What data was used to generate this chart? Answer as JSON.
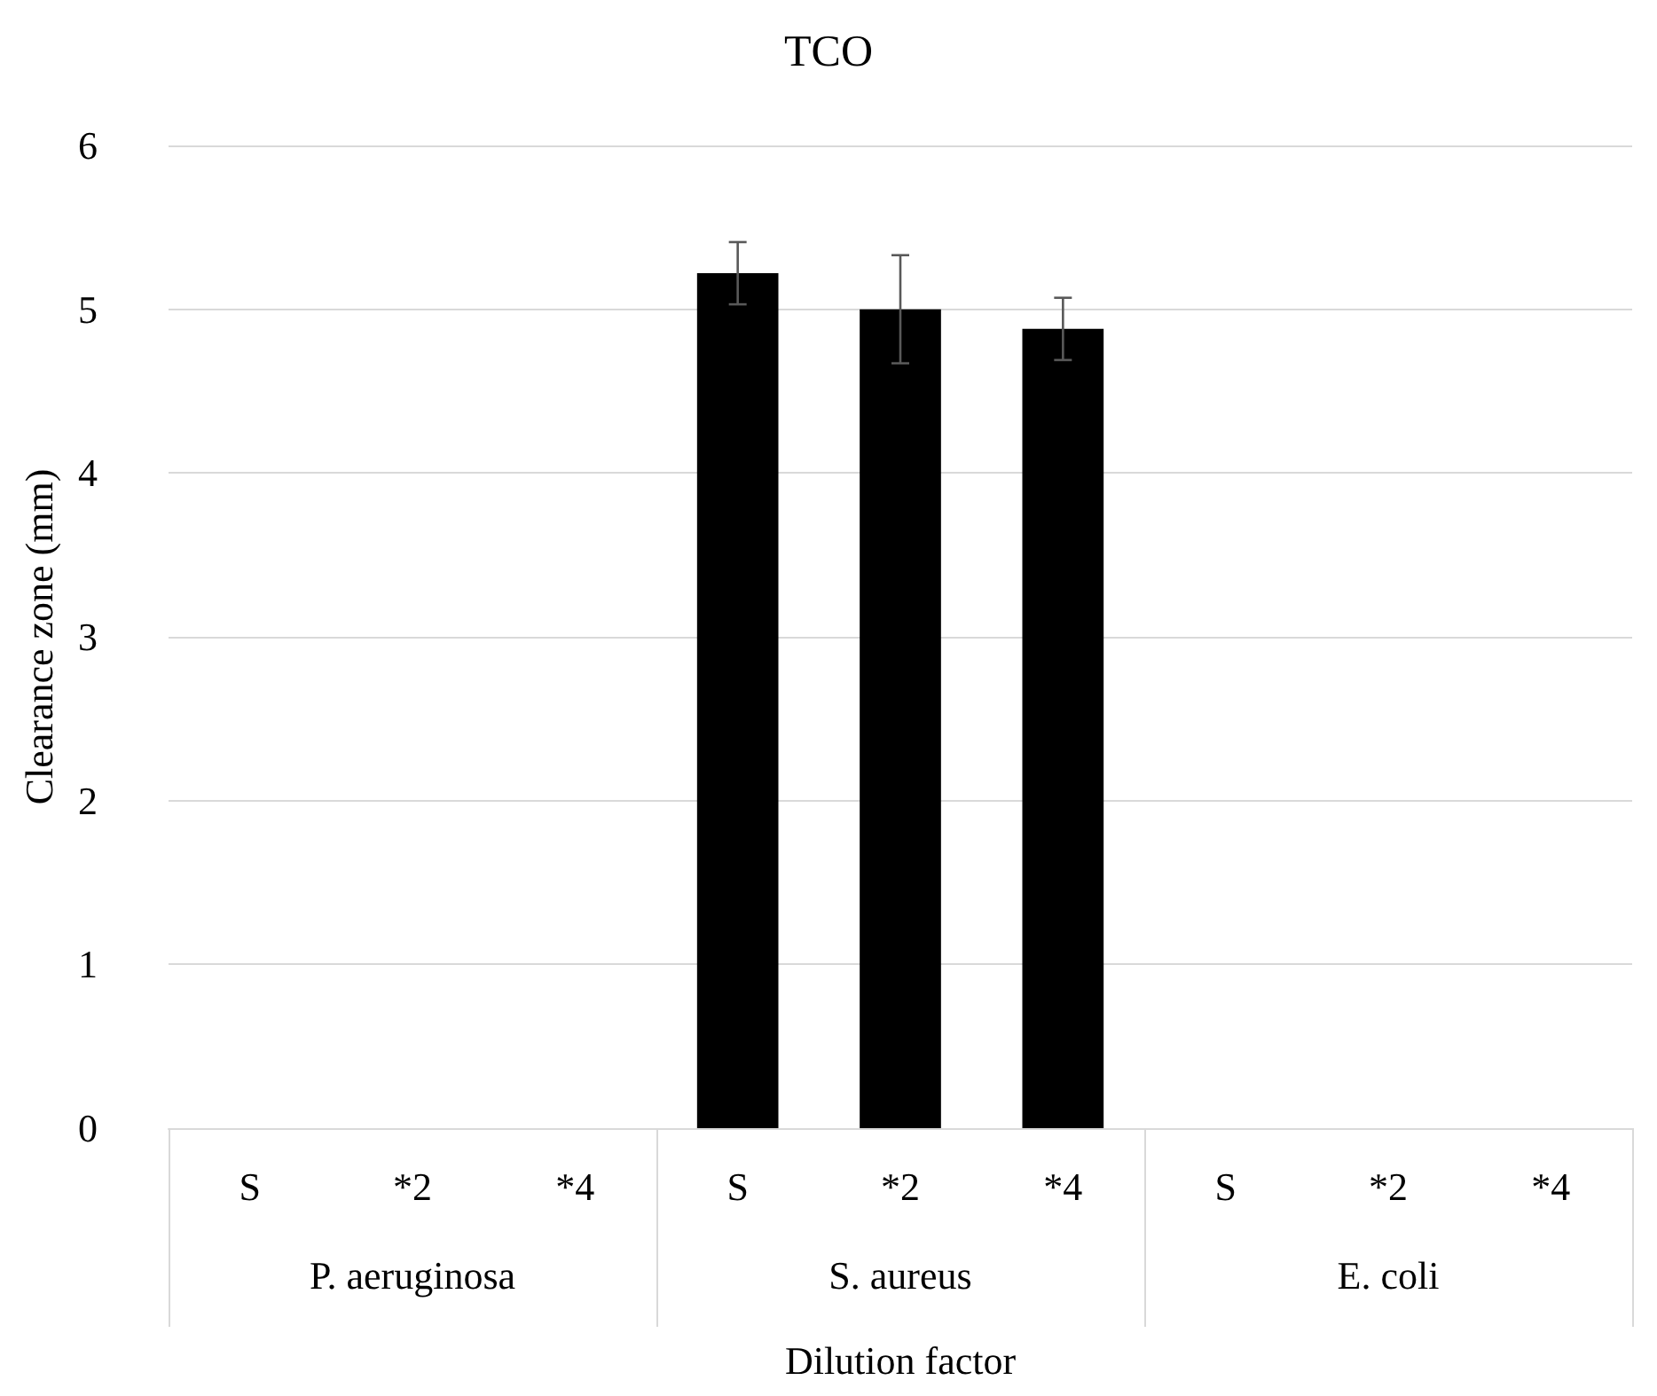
{
  "chart_data": {
    "type": "bar",
    "title": "TCO",
    "xlabel": "Dilution factor",
    "ylabel": "Clearance zone (mm)",
    "categories": [
      "S",
      "*2",
      "*4",
      "S",
      "*2",
      "*4",
      "S",
      "*2",
      "*4"
    ],
    "values": [
      0,
      0,
      0,
      5.22,
      5.0,
      4.88,
      0,
      0,
      0
    ],
    "errors": [
      null,
      null,
      null,
      0.19,
      0.33,
      0.19,
      null,
      null,
      null
    ],
    "color": "#000000",
    "annotations": [
      "P. aeruginosa",
      "S. aureus",
      "E. coli"
    ],
    "ylim": [
      0,
      6
    ],
    "yticks": [
      0,
      1,
      2,
      3,
      4,
      5,
      6
    ],
    "grid": "y"
  }
}
